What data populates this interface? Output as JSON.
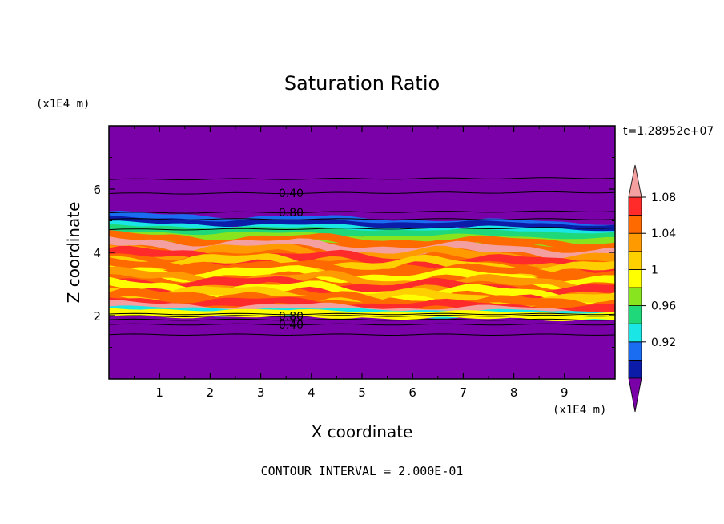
{
  "chart_data": {
    "type": "heatmap",
    "title": "Saturation Ratio",
    "xlabel": "X coordinate",
    "ylabel": "Z coordinate",
    "x_unit": "(x1E4 m)",
    "y_unit": "(x1E4 m)",
    "time_label": "t=1.28952e+07",
    "footer": "CONTOUR INTERVAL = 2.000E-01",
    "xlim": [
      0,
      10
    ],
    "ylim": [
      0,
      8
    ],
    "x_ticks": [
      "1",
      "2",
      "3",
      "4",
      "5",
      "6",
      "7",
      "8",
      "9"
    ],
    "y_ticks": [
      "2",
      "4",
      "6"
    ],
    "colorbar": {
      "levels": [
        0.92,
        0.96,
        1,
        1.04,
        1.08
      ],
      "tick_labels": [
        "0.92",
        "0.96",
        "1",
        "1.04",
        "1.08"
      ],
      "colors": [
        "#7a00a8",
        "#0a1ca8",
        "#1a6cf0",
        "#1ae6e6",
        "#1ed87a",
        "#88e41e",
        "#ffff00",
        "#ffd000",
        "#ff9a00",
        "#ff6a00",
        "#ff2a2a",
        "#f5a0a0"
      ]
    },
    "regions": [
      {
        "z_range": [
          0,
          1.9
        ],
        "value": "< 0.92"
      },
      {
        "z_range": [
          1.9,
          2.15
        ],
        "value": "0.96 - 1.10"
      },
      {
        "z_range": [
          2.15,
          4.5
        ],
        "value": "1.02 - 1.10"
      },
      {
        "z_range": [
          4.5,
          4.75
        ],
        "value": "0.96 - 1.0"
      },
      {
        "z_range": [
          4.75,
          5.1
        ],
        "value": "0.92 - 0.96"
      },
      {
        "z_range": [
          5.1,
          8.0
        ],
        "value": "< 0.92"
      }
    ],
    "contour_lines": [
      {
        "label": "0.40",
        "z_start": 5.86,
        "z_end": 5.9
      },
      {
        "label": "0.80",
        "z_start": 5.25,
        "z_end": 5.3
      },
      {
        "label": "0.80",
        "z_start": 1.98,
        "z_end": 2.0
      },
      {
        "label": "0.40",
        "z_start": 1.72,
        "z_end": 1.72
      }
    ]
  }
}
